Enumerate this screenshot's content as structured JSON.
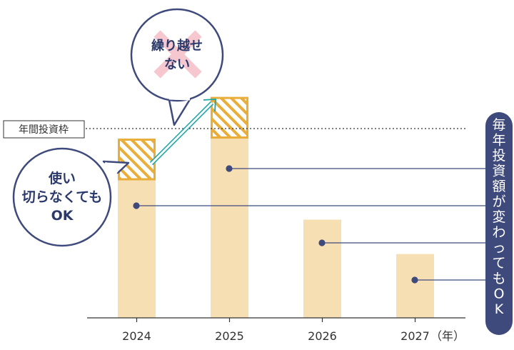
{
  "chart_data": {
    "type": "bar",
    "categories": [
      "2024",
      "2025",
      "2026",
      "2027"
    ],
    "x_unit_label": "（年）",
    "values": [
      280,
      380,
      200,
      130
    ],
    "hatched_segments": [
      {
        "category": "2024",
        "from": 280,
        "to": 365
      },
      {
        "category": "2025",
        "from": 365,
        "to": 450
      }
    ],
    "reference_line": {
      "value": 365,
      "label": "年間投資枠"
    },
    "ylim": [
      0,
      480
    ],
    "grid": false,
    "colors": {
      "bar": "#f7dfb4",
      "hatch_border": "#e9ad3a",
      "hatch_stripe": "#e9ad3a",
      "navy": "#3f4a7c",
      "arrow": "#1aa5a8",
      "cross": "#f6c7cf"
    }
  },
  "callouts": {
    "unused": [
      "使い",
      "切らなくても",
      "OK"
    ],
    "no_carry": [
      "繰り越せ",
      "ない"
    ],
    "side_note": "毎年投資額が変わってもOK"
  }
}
